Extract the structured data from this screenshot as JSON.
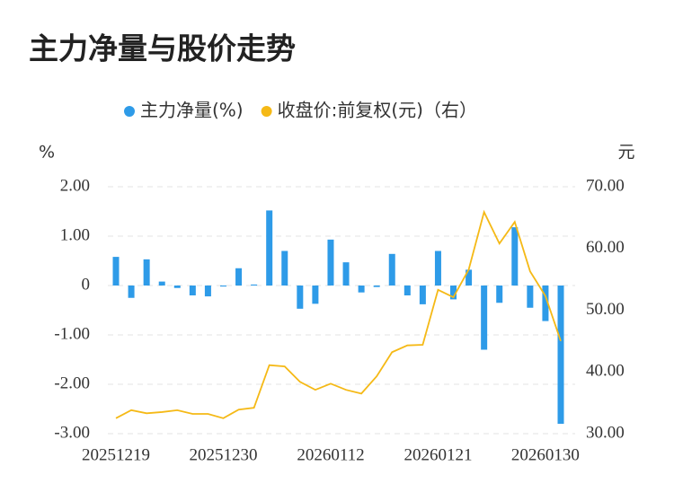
{
  "chart_data": {
    "type": "bar-line",
    "title": "主力净量与股价走势",
    "y_unit": "%",
    "y2_unit": "元",
    "categories": [
      "20251219",
      null,
      null,
      null,
      null,
      null,
      null,
      "20251230",
      null,
      null,
      null,
      null,
      null,
      null,
      "20260112",
      null,
      null,
      null,
      null,
      null,
      null,
      "20260121",
      null,
      null,
      null,
      null,
      null,
      null,
      "20260130",
      null
    ],
    "series": [
      {
        "name": "主力净量(%)",
        "color": "#2e9be8",
        "type": "bar",
        "values": [
          0.58,
          -0.25,
          0.53,
          0.08,
          -0.05,
          -0.2,
          -0.22,
          -0.02,
          0.35,
          0.02,
          1.52,
          0.7,
          -0.47,
          -0.37,
          0.93,
          0.47,
          -0.14,
          -0.03,
          0.64,
          -0.2,
          -0.38,
          0.7,
          -0.28,
          0.32,
          -1.3,
          -0.35,
          1.18,
          -0.45,
          -0.72,
          -2.8
        ]
      },
      {
        "name": "收盘价:前复权(元)（右）",
        "color": "#f5b916",
        "type": "line",
        "axis": "y2",
        "values": [
          32.5,
          33.8,
          33.3,
          33.5,
          33.8,
          33.2,
          33.2,
          32.5,
          33.9,
          34.2,
          41.1,
          40.9,
          38.4,
          37.1,
          38.1,
          37.1,
          36.5,
          39.3,
          43.2,
          44.3,
          44.4,
          53.3,
          52.1,
          56.6,
          65.9,
          60.8,
          64.3,
          56.3,
          52.3,
          45.0
        ]
      }
    ],
    "ylim": [
      -3,
      2
    ],
    "yticks": [
      {
        "value": -3,
        "label": "-3.00"
      },
      {
        "value": -2,
        "label": "-2.00"
      },
      {
        "value": -1,
        "label": "-1.00"
      },
      0,
      {
        "value": 1,
        "label": "1.00"
      },
      {
        "value": 2,
        "label": "2.00"
      }
    ],
    "y2lim": [
      30,
      70
    ],
    "y2ticks": [
      {
        "value": 30,
        "label": "30.00"
      },
      {
        "value": 40,
        "label": "40.00"
      },
      {
        "value": 50,
        "label": "50.00"
      },
      {
        "value": 60,
        "label": "60.00"
      },
      {
        "value": 70,
        "label": "70.00"
      }
    ],
    "grid": true
  }
}
